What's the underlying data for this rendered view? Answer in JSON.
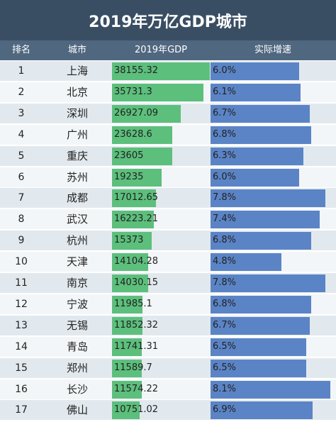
{
  "title": "2019年万亿GDP城市",
  "headers": {
    "rank": "排名",
    "city": "城市",
    "gdp": "2019年GDP",
    "growth": "实际增速"
  },
  "colors": {
    "title_bg": "#3a4e63",
    "header_bg": "#506780",
    "gdp_bar": "#5cbf7c",
    "growth_bar": "#5b84c6",
    "row_even": "#e2e9ee",
    "row_odd": "#f3f6f8"
  },
  "chart_data": {
    "type": "table",
    "columns": [
      "排名",
      "城市",
      "2019年GDP",
      "实际增速"
    ],
    "rows": [
      {
        "rank": "1",
        "city": "上海",
        "gdp": 38155.32,
        "gdp_label": "38155.32",
        "growth": 6.0,
        "growth_label": "6.0%"
      },
      {
        "rank": "2",
        "city": "北京",
        "gdp": 35731.3,
        "gdp_label": "35731.3",
        "growth": 6.1,
        "growth_label": "6.1%"
      },
      {
        "rank": "3",
        "city": "深圳",
        "gdp": 26927.09,
        "gdp_label": "26927.09",
        "growth": 6.7,
        "growth_label": "6.7%"
      },
      {
        "rank": "4",
        "city": "广州",
        "gdp": 23628.6,
        "gdp_label": "23628.6",
        "growth": 6.8,
        "growth_label": "6.8%"
      },
      {
        "rank": "5",
        "city": "重庆",
        "gdp": 23605,
        "gdp_label": "23605",
        "growth": 6.3,
        "growth_label": "6.3%"
      },
      {
        "rank": "6",
        "city": "苏州",
        "gdp": 19235,
        "gdp_label": "19235",
        "growth": 6.0,
        "growth_label": "6.0%"
      },
      {
        "rank": "7",
        "city": "成都",
        "gdp": 17012.65,
        "gdp_label": "17012.65",
        "growth": 7.8,
        "growth_label": "7.8%"
      },
      {
        "rank": "8",
        "city": "武汉",
        "gdp": 16223.21,
        "gdp_label": "16223.21",
        "growth": 7.4,
        "growth_label": "7.4%"
      },
      {
        "rank": "9",
        "city": "杭州",
        "gdp": 15373,
        "gdp_label": "15373",
        "growth": 6.8,
        "growth_label": "6.8%"
      },
      {
        "rank": "10",
        "city": "天津",
        "gdp": 14104.28,
        "gdp_label": "14104.28",
        "growth": 4.8,
        "growth_label": "4.8%"
      },
      {
        "rank": "11",
        "city": "南京",
        "gdp": 14030.15,
        "gdp_label": "14030.15",
        "growth": 7.8,
        "growth_label": "7.8%"
      },
      {
        "rank": "12",
        "city": "宁波",
        "gdp": 11985.1,
        "gdp_label": "11985.1",
        "growth": 6.8,
        "growth_label": "6.8%"
      },
      {
        "rank": "13",
        "city": "无锡",
        "gdp": 11852.32,
        "gdp_label": "11852.32",
        "growth": 6.7,
        "growth_label": "6.7%"
      },
      {
        "rank": "14",
        "city": "青岛",
        "gdp": 11741.31,
        "gdp_label": "11741.31",
        "growth": 6.5,
        "growth_label": "6.5%"
      },
      {
        "rank": "15",
        "city": "郑州",
        "gdp": 11589.7,
        "gdp_label": "11589.7",
        "growth": 6.5,
        "growth_label": "6.5%"
      },
      {
        "rank": "16",
        "city": "长沙",
        "gdp": 11574.22,
        "gdp_label": "11574.22",
        "growth": 8.1,
        "growth_label": "8.1%"
      },
      {
        "rank": "17",
        "city": "佛山",
        "gdp": 10751.02,
        "gdp_label": "10751.02",
        "growth": 6.9,
        "growth_label": "6.9%"
      }
    ]
  }
}
